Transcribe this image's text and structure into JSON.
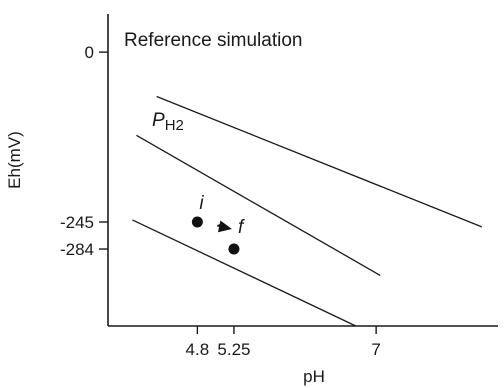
{
  "chart_data": {
    "type": "line",
    "title": "Reference simulation",
    "xlabel": "pH",
    "ylabel": "Eh(mV)",
    "x_ticks": [
      {
        "value": 4.8,
        "label": "4.8"
      },
      {
        "value": 5.25,
        "label": "5.25"
      },
      {
        "value": 7,
        "label": "7"
      }
    ],
    "y_ticks": [
      {
        "value": 0,
        "label": "0"
      },
      {
        "value": -245,
        "label": "-245"
      },
      {
        "value": -284,
        "label": "-284"
      }
    ],
    "xlim": [
      3.7,
      8.5
    ],
    "ylim": [
      -395,
      55
    ],
    "grid": false,
    "series": [
      {
        "x": [
          4.3,
          8.3
        ],
        "y": [
          -64,
          -252
        ]
      },
      {
        "x": [
          4.05,
          7.05
        ],
        "y": [
          -120,
          -322
        ]
      },
      {
        "x": [
          4.0,
          6.75
        ],
        "y": [
          -242,
          -395
        ]
      }
    ],
    "line_label": {
      "main": "P",
      "sub": "H2"
    },
    "points": [
      {
        "label": "i",
        "x": 4.8,
        "y": -245
      },
      {
        "label": "f",
        "x": 5.25,
        "y": -284
      }
    ],
    "arrow": {
      "from": "i",
      "to": "f"
    }
  }
}
